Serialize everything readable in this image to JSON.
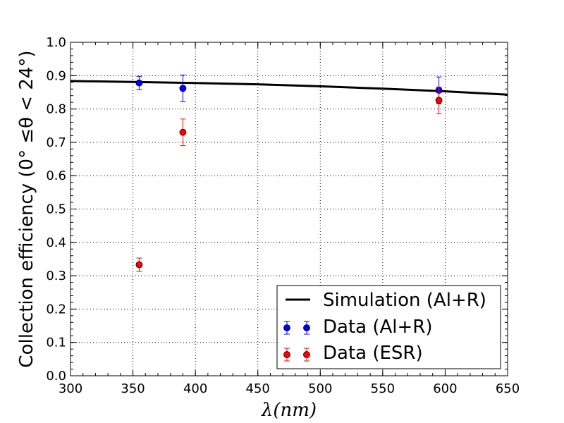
{
  "chart_data": {
    "type": "scatter",
    "title": "",
    "xlabel": "λ(nm)",
    "ylabel": "Collection efficiency (0° ≤θ < 24°)",
    "xlim": [
      300,
      650
    ],
    "ylim": [
      0.0,
      1.0
    ],
    "grid": true,
    "legend_position": "bottom-right",
    "x_ticks": [
      "300",
      "350",
      "400",
      "450",
      "500",
      "550",
      "600",
      "650"
    ],
    "y_ticks": [
      "0.0",
      "0.1",
      "0.2",
      "0.3",
      "0.4",
      "0.5",
      "0.6",
      "0.7",
      "0.8",
      "0.9",
      "1.0"
    ],
    "series": [
      {
        "name": "Simulation (Al+R)",
        "kind": "line",
        "color": "#000000",
        "x": [
          300,
          350,
          400,
          450,
          500,
          550,
          600,
          650
        ],
        "y": [
          0.884,
          0.881,
          0.878,
          0.874,
          0.868,
          0.861,
          0.853,
          0.843
        ]
      },
      {
        "name": "Data (Al+R)",
        "kind": "errorbar",
        "color": "#0000ff",
        "x": [
          355,
          390,
          595
        ],
        "y": [
          0.878,
          0.862,
          0.856
        ],
        "yerr": [
          0.02,
          0.04,
          0.04
        ]
      },
      {
        "name": "Data (ESR)",
        "kind": "errorbar",
        "color": "#ff0000",
        "x": [
          355,
          390,
          595
        ],
        "y": [
          0.333,
          0.73,
          0.826
        ],
        "yerr": [
          0.02,
          0.04,
          0.04
        ]
      }
    ]
  }
}
